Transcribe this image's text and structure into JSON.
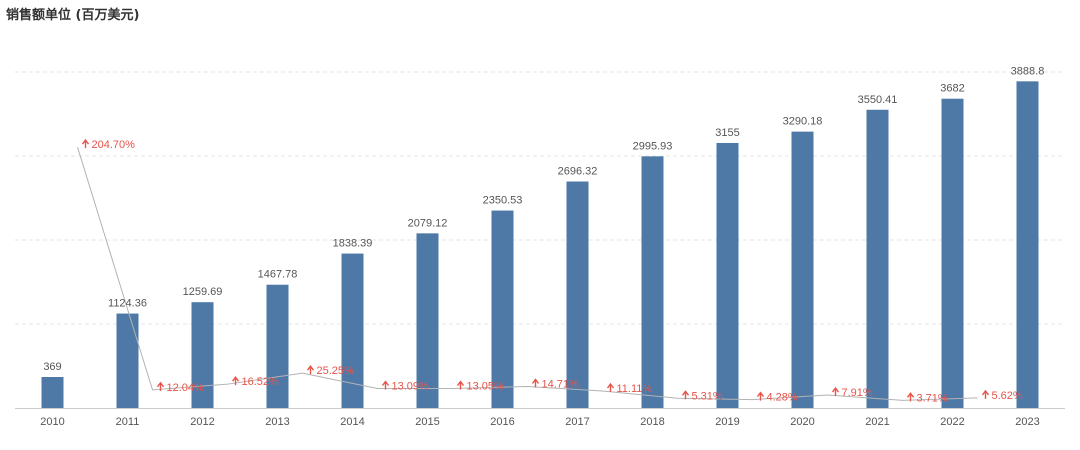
{
  "colors": {
    "bar": "#4e79a7",
    "growth_line": "#b3b3b3",
    "growth_text": "#e8534a",
    "grid": "#e6e6e6",
    "axis": "#cccccc"
  },
  "chart_data": {
    "type": "bar",
    "title": "销售额单位 (百万美元)",
    "xlabel": "",
    "ylabel": "",
    "grid": true,
    "ylim": [
      0,
      4000
    ],
    "categories": [
      "2010",
      "2011",
      "2012",
      "2013",
      "2014",
      "2015",
      "2016",
      "2017",
      "2018",
      "2019",
      "2020",
      "2021",
      "2022",
      "2023"
    ],
    "series": [
      {
        "values": [
          369,
          1124.36,
          1259.69,
          1467.78,
          1838.39,
          2079.12,
          2350.53,
          2696.32,
          2995.93,
          3155,
          3290.18,
          3550.41,
          3682,
          3888.8
        ],
        "labels": [
          "369",
          "1124.36",
          "1259.69",
          "1467.78",
          "1838.39",
          "2079.12",
          "2350.53",
          "2696.32",
          "2995.93",
          "3155",
          "3290.18",
          "3550.41",
          "3682",
          "3888.8"
        ]
      }
    ],
    "growth": {
      "categories": [
        "2011",
        "2012",
        "2013",
        "2014",
        "2015",
        "2016",
        "2017",
        "2018",
        "2019",
        "2020",
        "2021",
        "2022",
        "2023"
      ],
      "values": [
        204.7,
        12.04,
        16.52,
        25.25,
        13.09,
        13.05,
        14.71,
        11.11,
        5.31,
        4.28,
        7.91,
        3.71,
        5.62
      ],
      "labels": [
        "204.70%",
        "12.04%",
        "16.52%",
        "25.25%",
        "13.09%",
        "13.05%",
        "14.71%",
        "11.11%",
        "5.31%",
        "4.28%",
        "7.91%",
        "3.71%",
        "5.62%"
      ]
    }
  }
}
